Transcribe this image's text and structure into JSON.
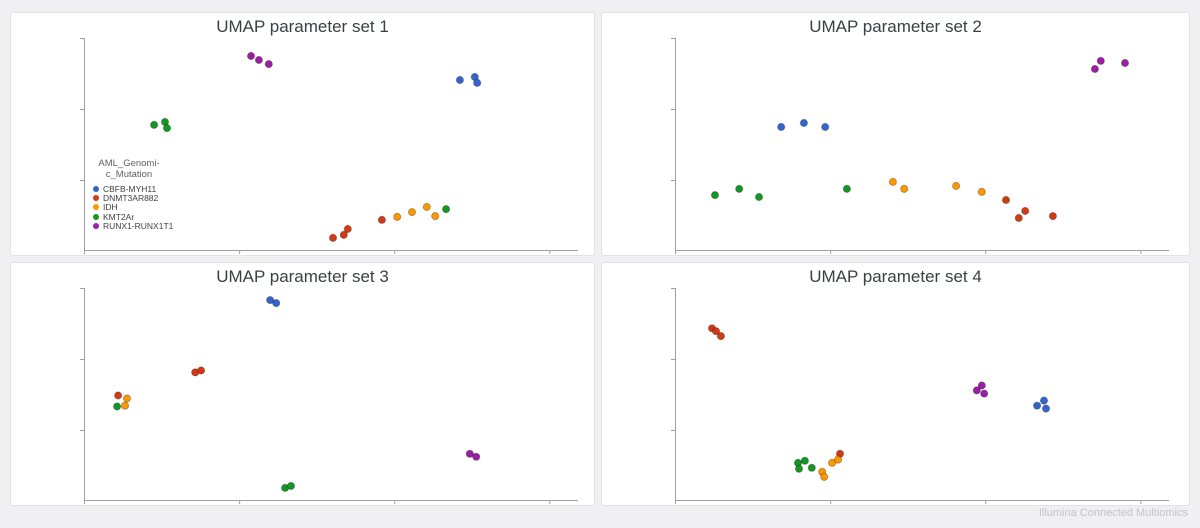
{
  "page": {
    "background_color": "#f0f0f2",
    "footer_text": "Illumina Connected Multiomics"
  },
  "palette": {
    "CBFB-MYH11": "#3366CC",
    "DNMT3AR882": "#D23A14",
    "IDH": "#FF9800",
    "KMT2Ar": "#149824",
    "RUNX1-RUNX1T1": "#9B1EA5"
  },
  "legend": {
    "title_lines": [
      "AML_Genomi-",
      "c_Mutation"
    ],
    "items": [
      {
        "label": "CBFB-MYH11"
      },
      {
        "label": "DNMT3AR882"
      },
      {
        "label": "IDH"
      },
      {
        "label": "KMT2Ar"
      },
      {
        "label": "RUNX1-RUNX1T1"
      }
    ]
  },
  "chart_data": [
    {
      "type": "scatter",
      "title": "UMAP parameter set 1",
      "xlabel": "",
      "ylabel": "",
      "axis_tick_labels": "none (unlabeled UMAP axes)",
      "x_range": [
        0,
        100
      ],
      "y_range": [
        0,
        100
      ],
      "legend_position": "inside-left",
      "series": [
        {
          "name": "CBFB-MYH11",
          "points": [
            [
              76.1,
              80.2
            ],
            [
              79.1,
              81.6
            ],
            [
              79.6,
              78.8
            ]
          ]
        },
        {
          "name": "DNMT3AR882",
          "points": [
            [
              50.4,
              5.7
            ],
            [
              52.6,
              7.1
            ],
            [
              53.4,
              9.9
            ],
            [
              60.3,
              14.2
            ]
          ]
        },
        {
          "name": "IDH",
          "points": [
            [
              63.4,
              15.6
            ],
            [
              66.4,
              17.9
            ],
            [
              69.4,
              20.3
            ],
            [
              71.1,
              16.0
            ]
          ]
        },
        {
          "name": "KMT2Ar",
          "points": [
            [
              14.2,
              59.0
            ],
            [
              16.4,
              60.4
            ],
            [
              16.8,
              57.5
            ],
            [
              73.3,
              19.3
            ]
          ]
        },
        {
          "name": "RUNX1-RUNX1T1",
          "points": [
            [
              33.8,
              91.5
            ],
            [
              35.4,
              89.6
            ],
            [
              37.4,
              87.7
            ]
          ]
        }
      ]
    },
    {
      "type": "scatter",
      "title": "UMAP parameter set 2",
      "xlabel": "",
      "ylabel": "",
      "axis_tick_labels": "none (unlabeled UMAP axes)",
      "x_range": [
        0,
        100
      ],
      "y_range": [
        0,
        100
      ],
      "legend_position": "none",
      "series": [
        {
          "name": "CBFB-MYH11",
          "points": [
            [
              21.5,
              58.0
            ],
            [
              26.1,
              59.9
            ],
            [
              30.4,
              58.0
            ]
          ]
        },
        {
          "name": "DNMT3AR882",
          "points": [
            [
              67.0,
              23.6
            ],
            [
              69.6,
              15.1
            ],
            [
              70.9,
              18.4
            ],
            [
              76.5,
              16.0
            ]
          ]
        },
        {
          "name": "IDH",
          "points": [
            [
              44.1,
              32.1
            ],
            [
              46.4,
              28.8
            ],
            [
              56.9,
              30.2
            ],
            [
              62.1,
              27.4
            ]
          ]
        },
        {
          "name": "KMT2Ar",
          "points": [
            [
              8.1,
              25.9
            ],
            [
              13.0,
              28.8
            ],
            [
              17.0,
              25.0
            ],
            [
              34.8,
              28.8
            ]
          ]
        },
        {
          "name": "RUNX1-RUNX1T1",
          "points": [
            [
              85.0,
              85.4
            ],
            [
              86.2,
              89.2
            ],
            [
              91.1,
              88.2
            ]
          ]
        }
      ]
    },
    {
      "type": "scatter",
      "title": "UMAP parameter set 3",
      "xlabel": "",
      "ylabel": "",
      "axis_tick_labels": "none (unlabeled UMAP axes)",
      "x_range": [
        0,
        100
      ],
      "y_range": [
        0,
        100
      ],
      "legend_position": "none",
      "series": [
        {
          "name": "CBFB-MYH11",
          "points": [
            [
              37.7,
              94.3
            ],
            [
              38.9,
              92.9
            ]
          ]
        },
        {
          "name": "DNMT3AR882",
          "points": [
            [
              22.5,
              60.2
            ],
            [
              23.7,
              61.1
            ],
            [
              6.9,
              49.3
            ]
          ]
        },
        {
          "name": "IDH",
          "points": [
            [
              8.7,
              47.9
            ],
            [
              8.3,
              44.5
            ]
          ]
        },
        {
          "name": "KMT2Ar",
          "points": [
            [
              6.7,
              44.1
            ],
            [
              40.7,
              5.7
            ],
            [
              41.9,
              6.6
            ]
          ]
        },
        {
          "name": "RUNX1-RUNX1T1",
          "points": [
            [
              78.1,
              21.8
            ],
            [
              79.4,
              20.4
            ]
          ]
        }
      ]
    },
    {
      "type": "scatter",
      "title": "UMAP parameter set 4",
      "xlabel": "",
      "ylabel": "",
      "axis_tick_labels": "none (unlabeled UMAP axes)",
      "x_range": [
        0,
        100
      ],
      "y_range": [
        0,
        100
      ],
      "legend_position": "none",
      "series": [
        {
          "name": "CBFB-MYH11",
          "points": [
            [
              73.3,
              44.5
            ],
            [
              74.7,
              46.9
            ],
            [
              75.1,
              43.1
            ]
          ]
        },
        {
          "name": "DNMT3AR882",
          "points": [
            [
              7.5,
              81.0
            ],
            [
              8.3,
              79.6
            ],
            [
              9.3,
              77.3
            ],
            [
              33.4,
              21.8
            ]
          ]
        },
        {
          "name": "IDH",
          "points": [
            [
              29.8,
              13.3
            ],
            [
              30.2,
              10.9
            ],
            [
              31.8,
              17.5
            ],
            [
              33.0,
              19.0
            ]
          ]
        },
        {
          "name": "KMT2Ar",
          "points": [
            [
              24.9,
              17.5
            ],
            [
              26.3,
              18.5
            ],
            [
              27.7,
              15.2
            ],
            [
              25.1,
              14.7
            ]
          ]
        },
        {
          "name": "RUNX1-RUNX1T1",
          "points": [
            [
              61.1,
              51.7
            ],
            [
              62.1,
              54.0
            ],
            [
              62.6,
              50.2
            ]
          ]
        }
      ]
    }
  ]
}
